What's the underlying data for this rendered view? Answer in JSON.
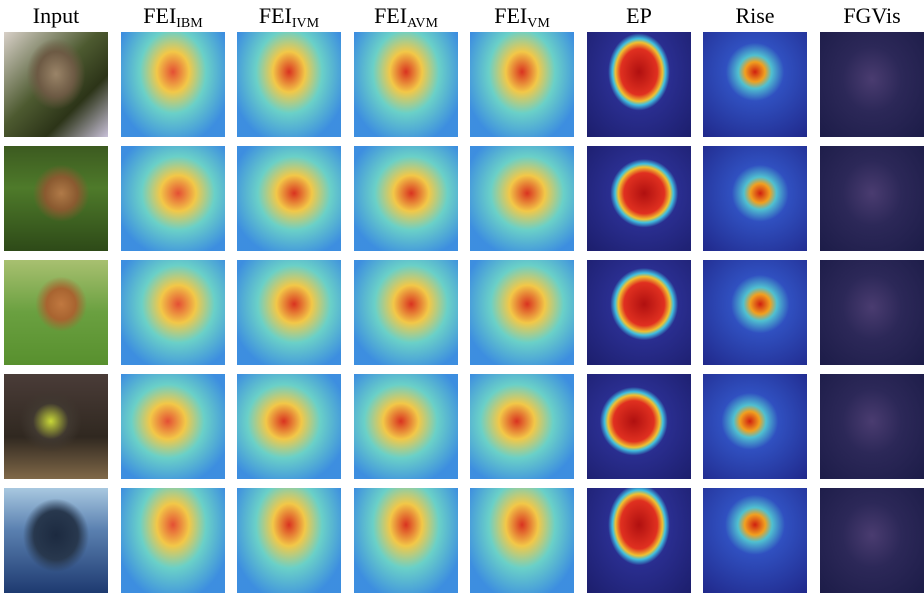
{
  "columns": [
    {
      "label": "Input"
    },
    {
      "label": "FEI",
      "subscript": "IBM"
    },
    {
      "label": "FEI",
      "subscript": "IVM"
    },
    {
      "label": "FEI",
      "subscript": "AVM"
    },
    {
      "label": "FEI",
      "subscript": "VM"
    },
    {
      "label": "EP"
    },
    {
      "label": "Rise"
    },
    {
      "label": "FGVis"
    }
  ]
}
